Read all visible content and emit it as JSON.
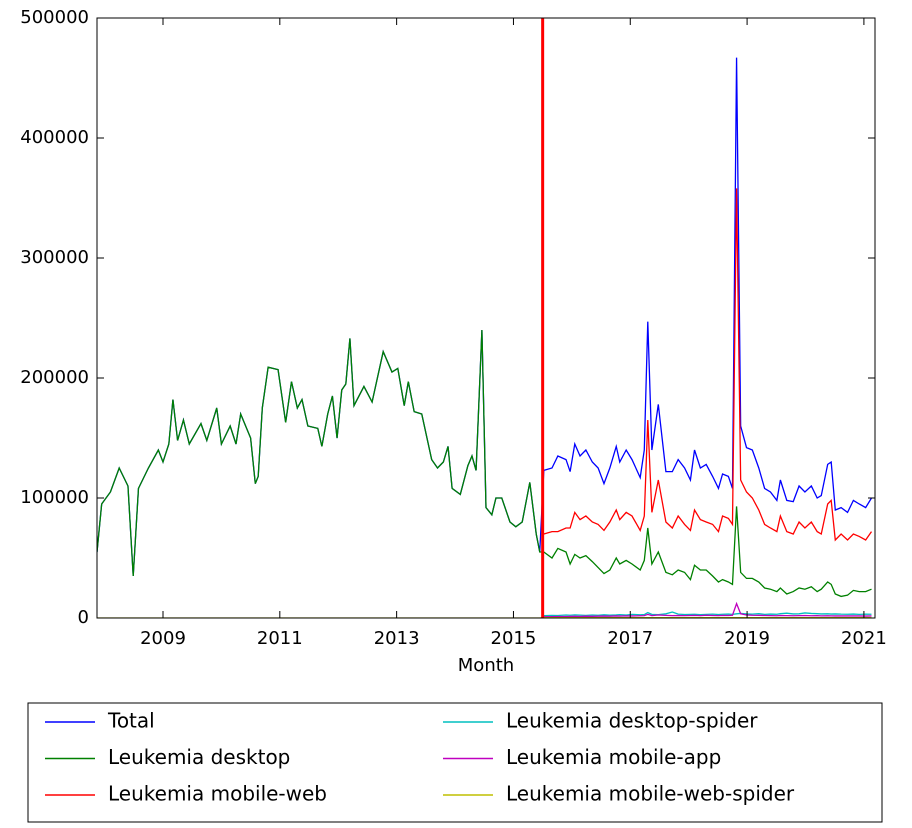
{
  "chart_data": {
    "type": "line",
    "xlabel": "Month",
    "xlim": [
      2007.87,
      2021.19
    ],
    "xticks": [
      2009,
      2011,
      2013,
      2015,
      2017,
      2019,
      2021
    ],
    "ylim": [
      0,
      500000
    ],
    "yticks": [
      0,
      100000,
      200000,
      300000,
      400000,
      500000
    ],
    "grid": false,
    "legend": "below",
    "vline": {
      "x": 2015.5,
      "color": "#ff0000"
    },
    "x": [
      2007.87,
      2007.95,
      2008.1,
      2008.25,
      2008.4,
      2008.49,
      2008.58,
      2008.75,
      2008.92,
      2009.0,
      2009.1,
      2009.17,
      2009.25,
      2009.35,
      2009.45,
      2009.65,
      2009.75,
      2009.92,
      2010.0,
      2010.15,
      2010.25,
      2010.33,
      2010.5,
      2010.58,
      2010.63,
      2010.7,
      2010.8,
      2010.97,
      2011.1,
      2011.2,
      2011.3,
      2011.38,
      2011.48,
      2011.65,
      2011.72,
      2011.82,
      2011.9,
      2011.98,
      2012.06,
      2012.13,
      2012.2,
      2012.27,
      2012.44,
      2012.58,
      2012.77,
      2012.92,
      2013.02,
      2013.13,
      2013.2,
      2013.3,
      2013.43,
      2013.6,
      2013.7,
      2013.8,
      2013.88,
      2013.95,
      2014.09,
      2014.22,
      2014.29,
      2014.36,
      2014.46,
      2014.53,
      2014.63,
      2014.7,
      2014.8,
      2014.94,
      2015.04,
      2015.15,
      2015.28,
      2015.39,
      2015.45,
      2015.52,
      2015.66,
      2015.76,
      2015.9,
      2015.97,
      2016.05,
      2016.14,
      2016.24,
      2016.35,
      2016.45,
      2016.55,
      2016.65,
      2016.76,
      2016.82,
      2016.93,
      2017.03,
      2017.17,
      2017.24,
      2017.3,
      2017.37,
      2017.48,
      2017.61,
      2017.72,
      2017.82,
      2017.93,
      2018.03,
      2018.1,
      2018.2,
      2018.3,
      2018.41,
      2018.51,
      2018.58,
      2018.68,
      2018.75,
      2018.82,
      2018.89,
      2018.99,
      2019.09,
      2019.2,
      2019.3,
      2019.4,
      2019.51,
      2019.57,
      2019.68,
      2019.79,
      2019.89,
      2019.99,
      2020.1,
      2020.2,
      2020.27,
      2020.38,
      2020.44,
      2020.51,
      2020.61,
      2020.72,
      2020.82,
      2020.92,
      2021.03,
      2021.13
    ],
    "series": [
      {
        "name": "Total",
        "color": "#0000ff",
        "values": [
          55000,
          95000,
          105000,
          125000,
          110000,
          35000,
          108000,
          125000,
          140000,
          130000,
          145000,
          182000,
          148000,
          165000,
          145000,
          162000,
          148000,
          175000,
          145000,
          160000,
          145000,
          170000,
          150000,
          112000,
          118000,
          175000,
          209000,
          207000,
          163000,
          197000,
          175000,
          182000,
          160000,
          158000,
          143000,
          170000,
          185000,
          150000,
          190000,
          195000,
          233000,
          177000,
          193000,
          180000,
          222000,
          205000,
          208000,
          177000,
          197000,
          172000,
          170000,
          132000,
          125000,
          130000,
          143000,
          108000,
          103000,
          127000,
          135000,
          123000,
          240000,
          92000,
          86000,
          100000,
          100000,
          80000,
          76000,
          80000,
          113000,
          70000,
          55000,
          123000,
          125000,
          135000,
          132000,
          122000,
          145000,
          135000,
          140000,
          130000,
          125000,
          112000,
          125000,
          143000,
          130000,
          140000,
          132000,
          117000,
          140000,
          247000,
          140000,
          178000,
          122000,
          122000,
          132000,
          125000,
          115000,
          140000,
          125000,
          128000,
          118000,
          108000,
          120000,
          118000,
          108000,
          467000,
          160000,
          142000,
          140000,
          125000,
          108000,
          105000,
          98000,
          115000,
          98000,
          97000,
          110000,
          105000,
          110000,
          100000,
          102000,
          128000,
          130000,
          90000,
          92000,
          88000,
          98000,
          95000,
          92000,
          100000
        ]
      },
      {
        "name": "Leukemia desktop",
        "color": "#008000",
        "values": [
          55000,
          95000,
          105000,
          125000,
          110000,
          35000,
          108000,
          125000,
          140000,
          130000,
          145000,
          182000,
          148000,
          165000,
          145000,
          162000,
          148000,
          175000,
          145000,
          160000,
          145000,
          170000,
          150000,
          112000,
          118000,
          175000,
          209000,
          207000,
          163000,
          197000,
          175000,
          182000,
          160000,
          158000,
          143000,
          170000,
          185000,
          150000,
          190000,
          195000,
          233000,
          177000,
          193000,
          180000,
          222000,
          205000,
          208000,
          177000,
          197000,
          172000,
          170000,
          132000,
          125000,
          130000,
          143000,
          108000,
          103000,
          127000,
          135000,
          123000,
          240000,
          92000,
          86000,
          100000,
          100000,
          80000,
          76000,
          80000,
          113000,
          70000,
          55000,
          55000,
          50000,
          58000,
          55000,
          45000,
          53000,
          50000,
          52000,
          47000,
          42000,
          37000,
          40000,
          50000,
          45000,
          48000,
          45000,
          40000,
          48000,
          75000,
          45000,
          55000,
          38000,
          36000,
          40000,
          38000,
          32000,
          44000,
          40000,
          40000,
          35000,
          30000,
          32000,
          30000,
          28000,
          93000,
          38000,
          33000,
          33000,
          30000,
          25000,
          24000,
          22000,
          25000,
          20000,
          22000,
          25000,
          24000,
          26000,
          22000,
          24000,
          30000,
          28000,
          20000,
          18000,
          19000,
          23000,
          22000,
          22000,
          24000
        ]
      },
      {
        "name": "Leukemia mobile-web",
        "color": "#ff0000",
        "values": [
          null,
          null,
          null,
          null,
          null,
          null,
          null,
          null,
          null,
          null,
          null,
          null,
          null,
          null,
          null,
          null,
          null,
          null,
          null,
          null,
          null,
          null,
          null,
          null,
          null,
          null,
          null,
          null,
          null,
          null,
          null,
          null,
          null,
          null,
          null,
          null,
          null,
          null,
          null,
          null,
          null,
          null,
          null,
          null,
          null,
          null,
          null,
          null,
          null,
          null,
          null,
          null,
          null,
          null,
          null,
          null,
          null,
          null,
          null,
          null,
          null,
          null,
          null,
          null,
          null,
          null,
          null,
          null,
          null,
          null,
          null,
          70000,
          72000,
          72000,
          75000,
          75000,
          88000,
          82000,
          85000,
          80000,
          78000,
          73000,
          80000,
          90000,
          82000,
          88000,
          85000,
          73000,
          85000,
          165000,
          88000,
          115000,
          80000,
          75000,
          85000,
          78000,
          73000,
          90000,
          82000,
          80000,
          78000,
          72000,
          85000,
          83000,
          78000,
          358000,
          115000,
          105000,
          100000,
          90000,
          78000,
          75000,
          72000,
          85000,
          72000,
          70000,
          80000,
          75000,
          80000,
          72000,
          70000,
          95000,
          98000,
          65000,
          70000,
          65000,
          70000,
          68000,
          65000,
          72000
        ]
      },
      {
        "name": "Leukemia desktop-spider",
        "color": "#00bfbf",
        "values": [
          null,
          null,
          null,
          null,
          null,
          null,
          null,
          null,
          null,
          null,
          null,
          null,
          null,
          null,
          null,
          null,
          null,
          null,
          null,
          null,
          null,
          null,
          null,
          null,
          null,
          null,
          null,
          null,
          null,
          null,
          null,
          null,
          null,
          null,
          null,
          null,
          null,
          null,
          null,
          null,
          null,
          null,
          null,
          null,
          null,
          null,
          null,
          null,
          null,
          null,
          null,
          null,
          null,
          null,
          null,
          null,
          null,
          null,
          null,
          null,
          null,
          null,
          null,
          null,
          null,
          null,
          null,
          null,
          null,
          null,
          null,
          2000,
          2200,
          2100,
          2500,
          2300,
          2600,
          2400,
          2200,
          2500,
          2300,
          2700,
          2400,
          2600,
          2800,
          2500,
          3000,
          2700,
          2900,
          4500,
          3000,
          2800,
          3500,
          5000,
          3200,
          2900,
          3000,
          3100,
          2800,
          3000,
          3200,
          2900,
          3100,
          3300,
          3000,
          3500,
          3800,
          3400,
          3200,
          3600,
          3000,
          3300,
          3100,
          3600,
          4000,
          3400,
          3500,
          4200,
          3800,
          3600,
          3400,
          3500,
          3300,
          3400,
          3200,
          3100,
          3300,
          3000,
          3200,
          3100
        ]
      },
      {
        "name": "Leukemia mobile-app",
        "color": "#bf00bf",
        "values": [
          null,
          null,
          null,
          null,
          null,
          null,
          null,
          null,
          null,
          null,
          null,
          null,
          null,
          null,
          null,
          null,
          null,
          null,
          null,
          null,
          null,
          null,
          null,
          null,
          null,
          null,
          null,
          null,
          null,
          null,
          null,
          null,
          null,
          null,
          null,
          null,
          null,
          null,
          null,
          null,
          null,
          null,
          null,
          null,
          null,
          null,
          null,
          null,
          null,
          null,
          null,
          null,
          null,
          null,
          null,
          null,
          null,
          null,
          null,
          null,
          null,
          null,
          null,
          null,
          null,
          null,
          null,
          null,
          null,
          null,
          null,
          1000,
          1100,
          1200,
          1200,
          1300,
          1400,
          1300,
          1500,
          1400,
          1500,
          1600,
          1500,
          1700,
          1600,
          1800,
          1700,
          1900,
          2000,
          3000,
          2000,
          2500,
          2200,
          2000,
          2100,
          2000,
          2100,
          2200,
          2000,
          2300,
          2100,
          2000,
          2200,
          2100,
          2300,
          12000,
          3500,
          2500,
          2300,
          2200,
          2100,
          2000,
          1900,
          2100,
          2000,
          1900,
          2000,
          2100,
          1900,
          2000,
          1800,
          1900,
          1800,
          1700,
          1800,
          1700,
          1800,
          1700,
          1600,
          1700
        ]
      },
      {
        "name": "Leukemia mobile-web-spider",
        "color": "#bfbf00",
        "values": [
          0,
          0,
          0,
          0,
          0,
          0,
          0,
          0,
          0,
          0,
          0,
          0,
          0,
          0,
          0,
          0,
          0,
          0,
          0,
          0,
          0,
          0,
          0,
          0,
          0,
          0,
          0,
          0,
          0,
          0,
          0,
          0,
          0,
          0,
          0,
          0,
          0,
          0,
          0,
          0,
          0,
          0,
          0,
          0,
          0,
          0,
          0,
          0,
          0,
          0,
          0,
          0,
          0,
          0,
          0,
          0,
          0,
          0,
          0,
          0,
          0,
          0,
          0,
          0,
          0,
          0,
          0,
          0,
          0,
          0,
          0,
          300,
          300,
          300,
          300,
          300,
          300,
          300,
          300,
          300,
          300,
          300,
          300,
          300,
          300,
          300,
          300,
          300,
          300,
          300,
          300,
          300,
          300,
          300,
          300,
          300,
          300,
          300,
          300,
          300,
          300,
          300,
          300,
          300,
          300,
          300,
          300,
          300,
          300,
          300,
          300,
          300,
          300,
          300,
          300,
          300,
          300,
          300,
          300,
          300,
          300,
          300,
          300,
          300,
          300,
          300,
          300,
          300,
          300,
          300
        ]
      }
    ]
  }
}
